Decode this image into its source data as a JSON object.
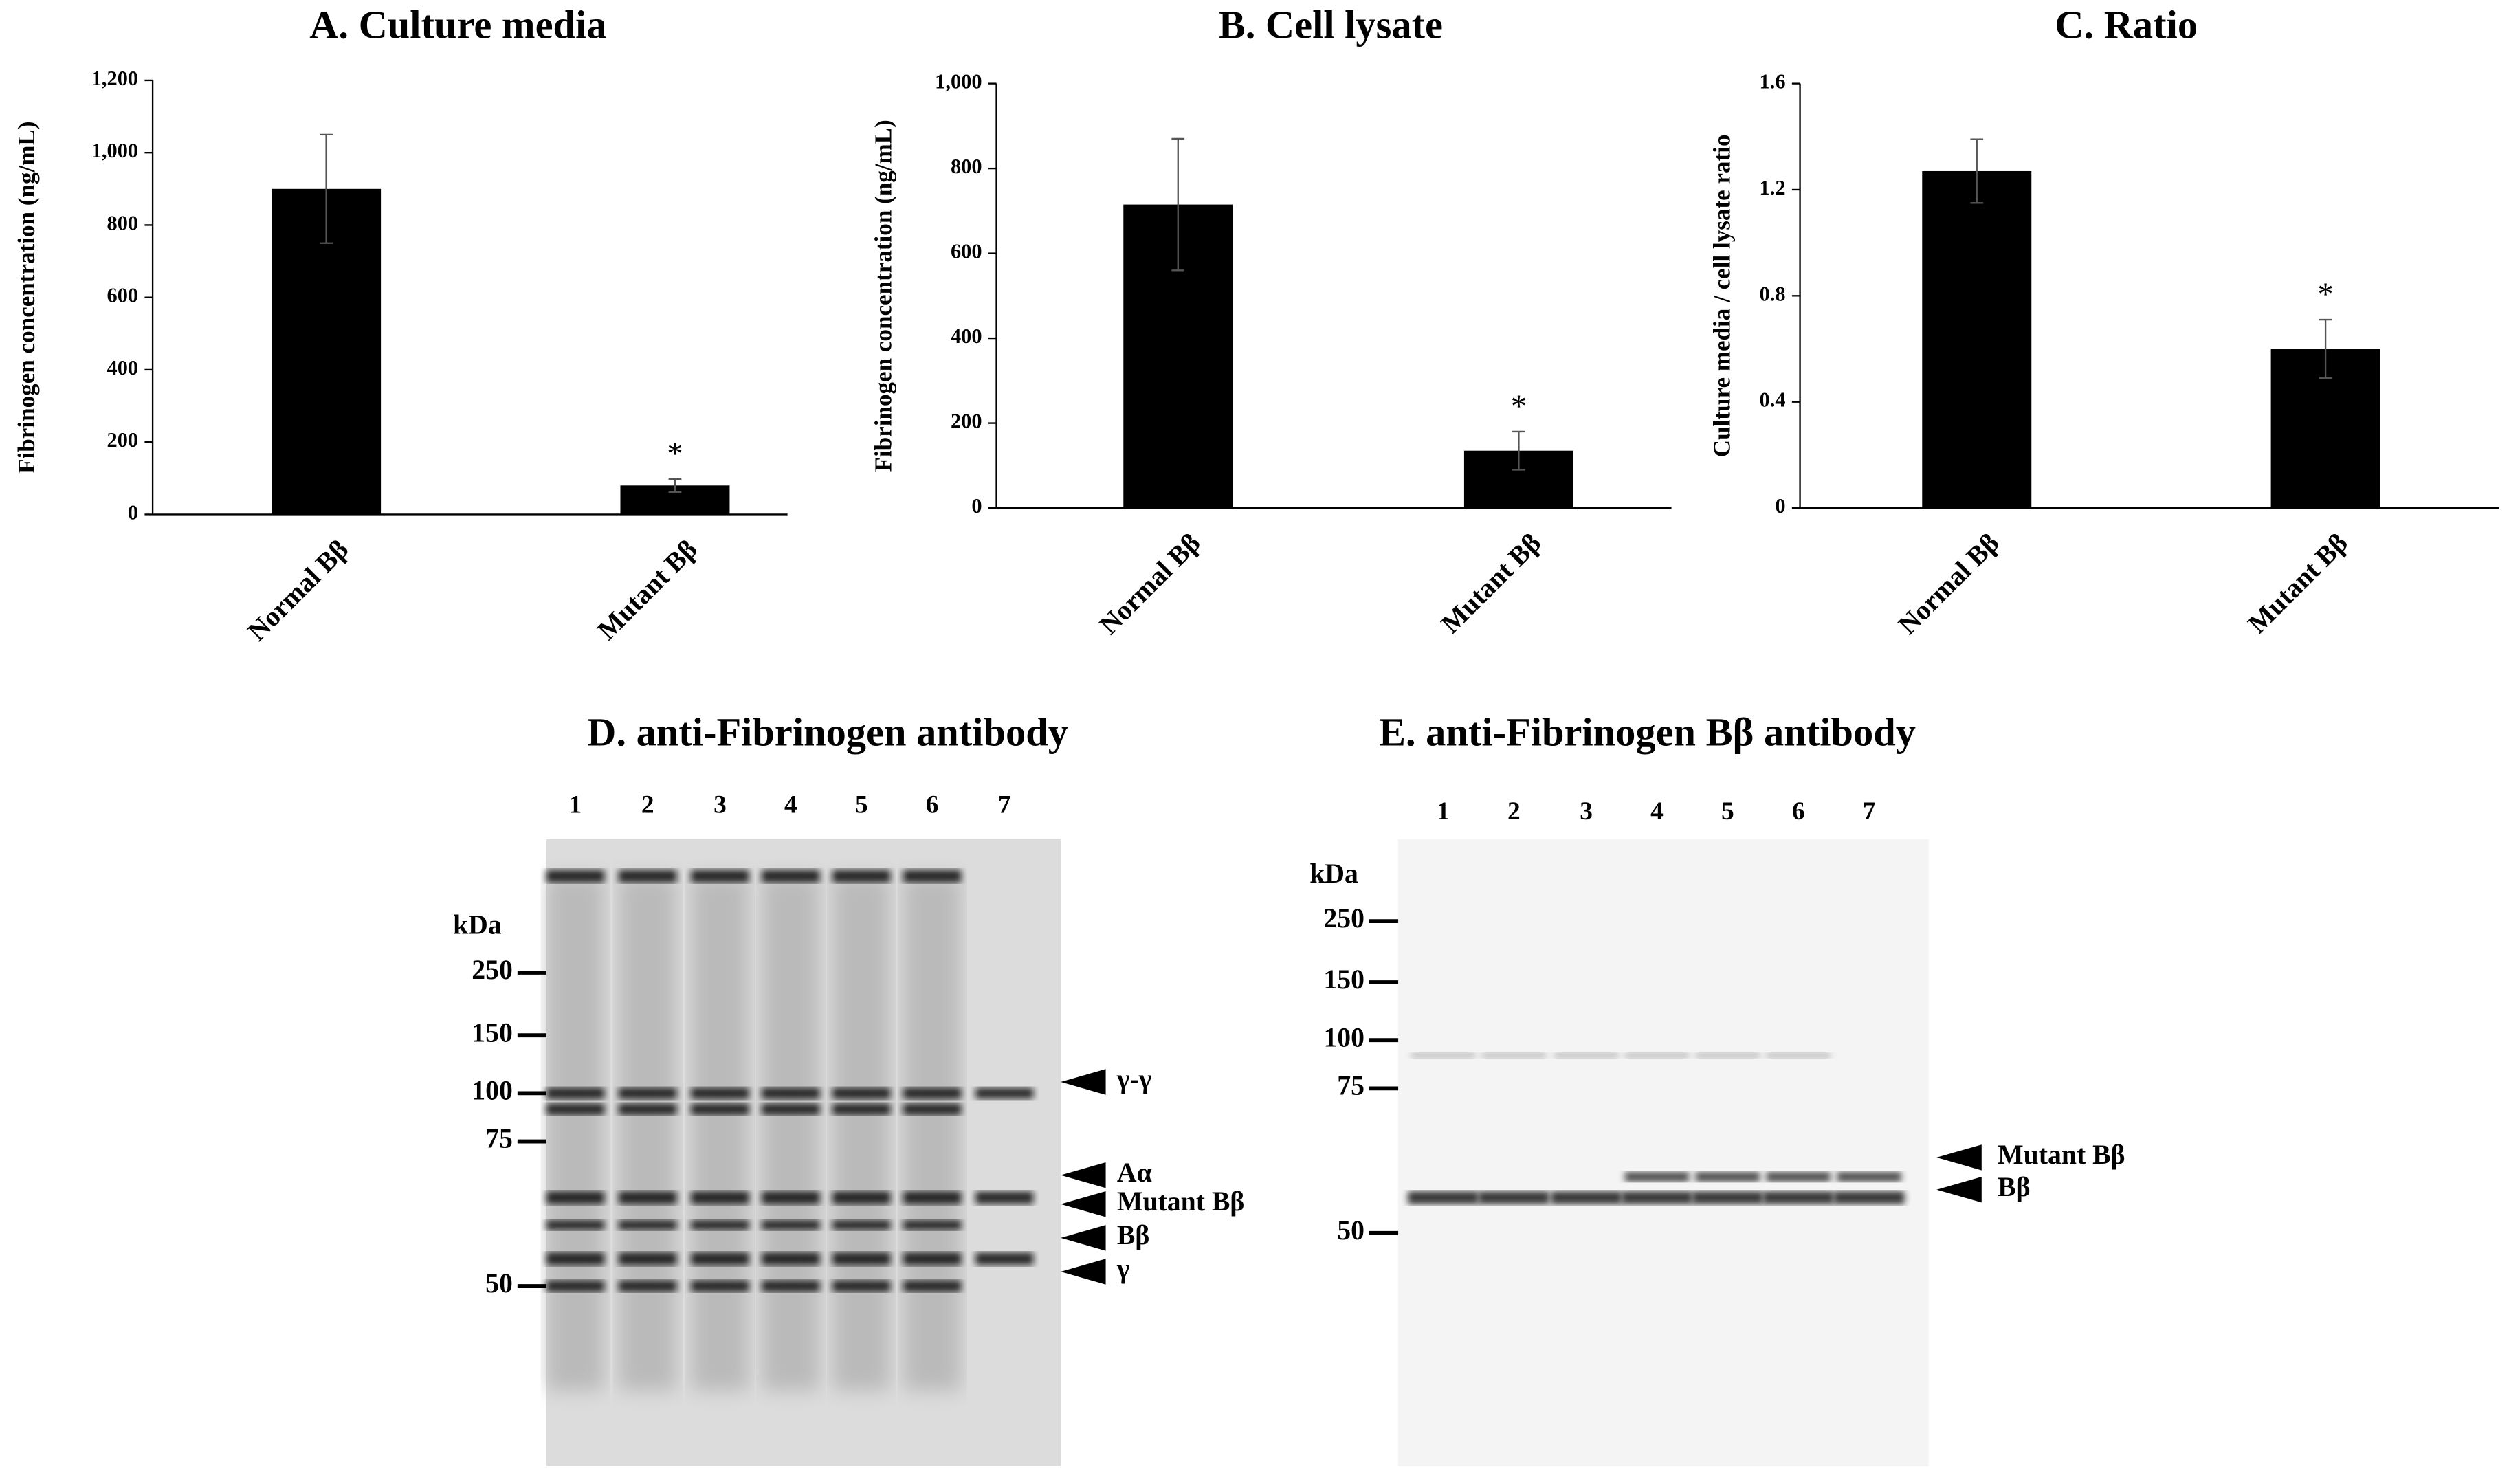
{
  "chart_data": [
    {
      "type": "bar",
      "title": "A. Culture media",
      "y_label": "Fibrinogen concentration (ng/mL)",
      "categories": [
        "Normal Bβ",
        "Mutant Bβ"
      ],
      "values": [
        900,
        80
      ],
      "errors": [
        150,
        18
      ],
      "value_annotations": [
        null,
        "*"
      ],
      "color": "#000000",
      "ylim": [
        0,
        1200
      ],
      "yticks": [
        0,
        200,
        400,
        600,
        800,
        {
          "value": 1000,
          "label": "1,000"
        },
        {
          "value": 1200,
          "label": "1,200"
        }
      ]
    },
    {
      "type": "bar",
      "title": "B. Cell lysate",
      "y_label": "Fibrinogen concentration (ng/mL)",
      "categories": [
        "Normal Bβ",
        "Mutant Bβ"
      ],
      "values": [
        715,
        135
      ],
      "errors": [
        155,
        45
      ],
      "value_annotations": [
        null,
        "*"
      ],
      "color": "#000000",
      "ylim": [
        0,
        1000
      ],
      "yticks": [
        0,
        200,
        400,
        600,
        800,
        {
          "value": 1000,
          "label": "1,000"
        }
      ]
    },
    {
      "type": "bar",
      "title": "C. Ratio",
      "y_label": "Culture media / cell lysate ratio",
      "categories": [
        "Normal Bβ",
        "Mutant Bβ"
      ],
      "values": [
        1.27,
        0.6
      ],
      "errors": [
        0.12,
        0.11
      ],
      "value_annotations": [
        null,
        "*"
      ],
      "color": "#000000",
      "ylim": [
        0,
        1.6
      ],
      "yticks": [
        0,
        0.4,
        0.8,
        1.2,
        1.6
      ]
    }
  ],
  "blots": [
    {
      "title": "D. anti-Fibrinogen antibody",
      "kda_label": "kDa",
      "lanes": [
        "1",
        "2",
        "3",
        "4",
        "5",
        "6",
        "7"
      ],
      "markers": [
        "250",
        "150",
        "100",
        "75",
        "50"
      ],
      "band_labels": [
        "γ-γ",
        "Aα",
        "Mutant Bβ",
        "Bβ",
        "γ"
      ]
    },
    {
      "title": "E. anti-Fibrinogen Bβ antibody",
      "kda_label": "kDa",
      "lanes": [
        "1",
        "2",
        "3",
        "4",
        "5",
        "6",
        "7"
      ],
      "markers": [
        "250",
        "150",
        "100",
        "75",
        "50"
      ],
      "band_labels": [
        "Mutant Bβ",
        "Bβ"
      ]
    }
  ]
}
